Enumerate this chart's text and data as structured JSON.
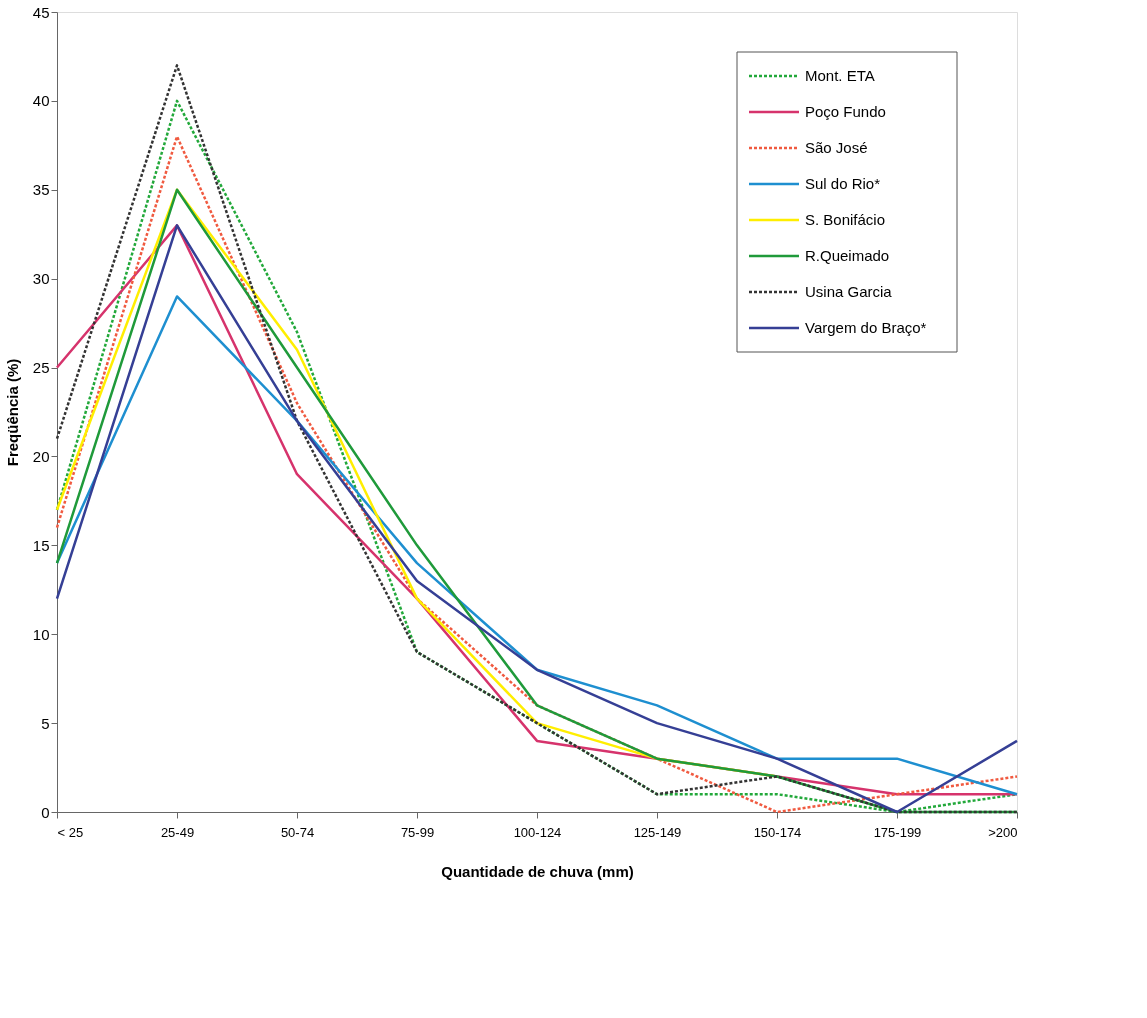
{
  "chart_data": {
    "type": "line",
    "xlabel": "Quantidade de chuva (mm)",
    "ylabel": "Freqüência (%)",
    "categories": [
      "< 25",
      "25-49",
      "50-74",
      "75-99",
      "100-124",
      "125-149",
      "150-174",
      "175-199",
      ">200"
    ],
    "ylim": [
      0,
      45
    ],
    "yticks": [
      0,
      5,
      10,
      15,
      20,
      25,
      30,
      35,
      40,
      45
    ],
    "grid": false,
    "legend": "top right",
    "marker": "none",
    "series": [
      {
        "name": "Mont. ETA",
        "color": "#22a83a",
        "line_style": "dotted",
        "values": [
          17,
          40,
          27,
          9,
          5,
          1,
          1,
          0,
          1
        ]
      },
      {
        "name": "Poço Fundo",
        "color": "#d6336c",
        "line_style": "solid",
        "values": [
          25,
          33,
          19,
          12,
          4,
          3,
          2,
          1,
          1
        ]
      },
      {
        "name": "São José",
        "color": "#f05a40",
        "line_style": "dotted",
        "values": [
          16,
          38,
          23,
          12,
          6,
          3,
          0,
          1,
          2
        ]
      },
      {
        "name": "Sul do Rio*",
        "color": "#1e8fd0",
        "line_style": "solid",
        "values": [
          14,
          29,
          22,
          14,
          8,
          6,
          3,
          3,
          1
        ]
      },
      {
        "name": "S. Bonifácio",
        "color": "#ffee00",
        "line_style": "solid",
        "values": [
          17,
          35,
          26,
          12,
          5,
          3,
          2,
          null,
          null
        ]
      },
      {
        "name": "R.Queimado",
        "color": "#1f9a3a",
        "line_style": "solid",
        "values": [
          14,
          35,
          25,
          15,
          6,
          3,
          2,
          0,
          0
        ]
      },
      {
        "name": " Usina Garcia",
        "color": "#333333",
        "line_style": "dotted",
        "values": [
          21,
          42,
          22,
          9,
          5,
          1,
          2,
          0,
          0
        ]
      },
      {
        "name": "Vargem do Braço*",
        "color": "#353f95",
        "line_style": "solid",
        "values": [
          12,
          33,
          22,
          13,
          8,
          5,
          3,
          0,
          4
        ]
      }
    ]
  }
}
